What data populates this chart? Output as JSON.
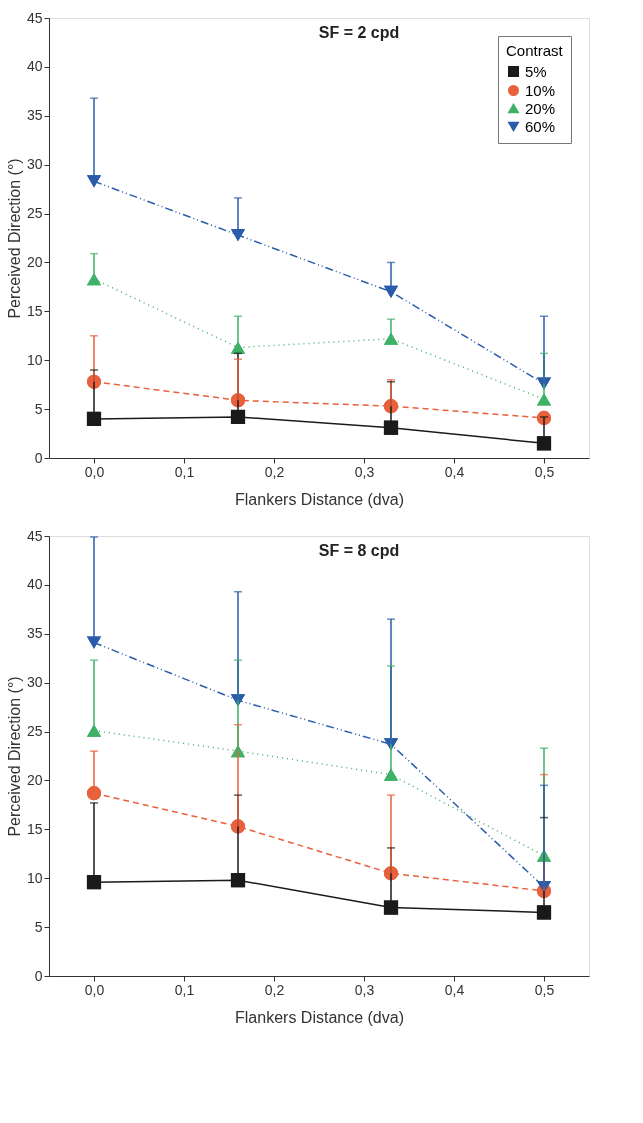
{
  "chart_data": [
    {
      "type": "line",
      "title": "SF = 2 cpd",
      "xlabel": "Flankers Distance (dva)",
      "ylabel": "Perceived Direction (°)",
      "legend_title": "Contrast",
      "legend": "top right",
      "grid": false,
      "x": [
        0,
        0.16,
        0.33,
        0.5
      ],
      "xlim": [
        -0.05,
        0.55
      ],
      "xticks": [
        {
          "value": 0,
          "label": "0,0"
        },
        {
          "value": 0.1,
          "label": "0,1"
        },
        {
          "value": 0.2,
          "label": "0,2"
        },
        {
          "value": 0.3,
          "label": "0,3"
        },
        {
          "value": 0.4,
          "label": "0,4"
        },
        {
          "value": 0.5,
          "label": "0,5"
        }
      ],
      "ylim": [
        0,
        45
      ],
      "yticks": [
        0,
        5,
        10,
        15,
        20,
        25,
        30,
        35,
        40,
        45
      ],
      "series": [
        {
          "name": "5%",
          "color": "#1a1a1a",
          "marker": "square",
          "line_style": "solid",
          "values": [
            4.0,
            4.2,
            3.1,
            1.5
          ],
          "errors": [
            [
              4.0,
              9.0
            ],
            [
              4.2,
              10.7
            ],
            [
              3.1,
              7.8
            ],
            [
              1.5,
              4.2
            ]
          ]
        },
        {
          "name": "10%",
          "color": "#e8603c",
          "marker": "circle",
          "line_style": "dashed",
          "values": [
            7.8,
            5.9,
            5.3,
            4.1
          ],
          "errors": [
            [
              7.8,
              12.5
            ],
            [
              5.9,
              10.1
            ],
            [
              5.3,
              8.0
            ],
            null
          ]
        },
        {
          "name": "20%",
          "color": "#3fb068",
          "marker": "triangle",
          "line_style": "dotted",
          "values": [
            18.3,
            11.3,
            12.2,
            6.0
          ],
          "errors": [
            [
              18.3,
              20.9
            ],
            [
              11.3,
              14.5
            ],
            [
              12.2,
              14.2
            ],
            [
              6.0,
              10.7
            ]
          ]
        },
        {
          "name": "60%",
          "color": "#2a5caa",
          "marker": "triangle-down",
          "line_style": "dashdotdot",
          "values": [
            28.3,
            22.8,
            17.0,
            7.6
          ],
          "errors": [
            [
              28.3,
              36.8
            ],
            [
              22.8,
              26.6
            ],
            [
              17.0,
              20.0
            ],
            [
              7.6,
              14.5
            ]
          ]
        }
      ]
    },
    {
      "type": "line",
      "title": "SF = 8 cpd",
      "xlabel": "Flankers Distance (dva)",
      "ylabel": "Perceived Direction (°)",
      "grid": false,
      "x": [
        0,
        0.16,
        0.33,
        0.5
      ],
      "xlim": [
        -0.05,
        0.55
      ],
      "xticks": [
        {
          "value": 0,
          "label": "0,0"
        },
        {
          "value": 0.1,
          "label": "0,1"
        },
        {
          "value": 0.2,
          "label": "0,2"
        },
        {
          "value": 0.3,
          "label": "0,3"
        },
        {
          "value": 0.4,
          "label": "0,4"
        },
        {
          "value": 0.5,
          "label": "0,5"
        }
      ],
      "ylim": [
        0,
        45
      ],
      "yticks": [
        0,
        5,
        10,
        15,
        20,
        25,
        30,
        35,
        40,
        45
      ],
      "series": [
        {
          "color": "#1a1a1a",
          "marker": "square",
          "line_style": "solid",
          "values": [
            9.6,
            9.8,
            7.0,
            6.5
          ],
          "errors": [
            [
              9.6,
              17.7
            ],
            [
              9.8,
              18.5
            ],
            [
              7.0,
              13.1
            ],
            [
              6.5,
              16.2
            ]
          ]
        },
        {
          "color": "#e8603c",
          "marker": "circle",
          "line_style": "dashed",
          "values": [
            18.7,
            15.3,
            10.5,
            8.7
          ],
          "errors": [
            [
              18.7,
              23.0
            ],
            [
              15.3,
              25.7
            ],
            [
              10.5,
              18.5
            ],
            [
              8.7,
              20.6
            ]
          ]
        },
        {
          "color": "#3fb068",
          "marker": "triangle",
          "line_style": "dotted",
          "values": [
            25.1,
            23.0,
            20.6,
            12.3
          ],
          "errors": [
            [
              25.1,
              32.3
            ],
            [
              23.0,
              32.3
            ],
            [
              20.6,
              31.7
            ],
            [
              12.3,
              23.3
            ]
          ]
        },
        {
          "color": "#2a5caa",
          "marker": "triangle-down",
          "line_style": "dashdotdot",
          "values": [
            34.1,
            28.2,
            23.7,
            9.1
          ],
          "errors": [
            [
              34.1,
              44.9
            ],
            [
              28.2,
              39.3
            ],
            [
              23.7,
              36.5
            ],
            [
              9.1,
              19.5
            ]
          ]
        }
      ]
    }
  ]
}
